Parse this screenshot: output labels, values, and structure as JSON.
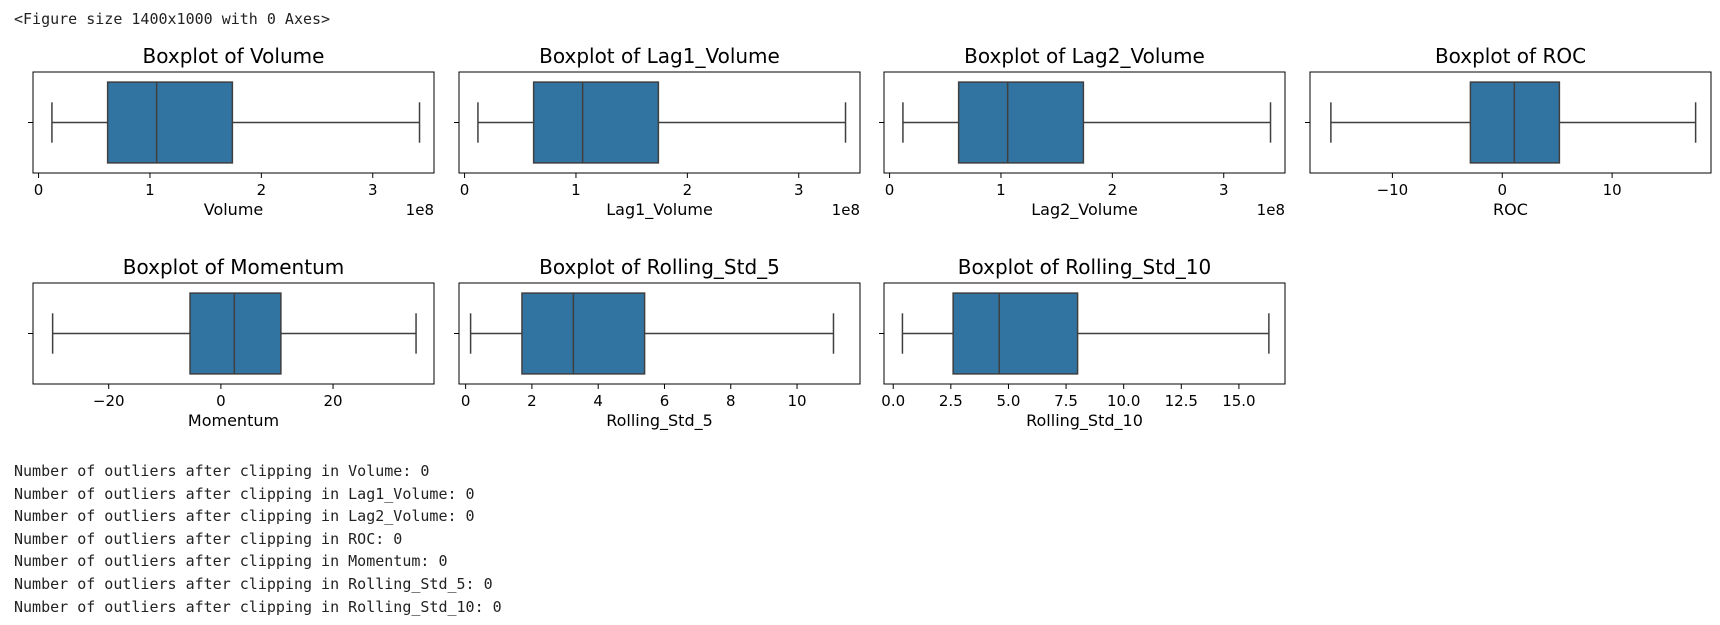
{
  "header_text": "<Figure size 1400x1000 with 0 Axes>",
  "output_lines": [
    "Number of outliers after clipping in Volume: 0",
    "Number of outliers after clipping in Lag1_Volume: 0",
    "Number of outliers after clipping in Lag2_Volume: 0",
    "Number of outliers after clipping in ROC: 0",
    "Number of outliers after clipping in Momentum: 0",
    "Number of outliers after clipping in Rolling_Std_5: 0",
    "Number of outliers after clipping in Rolling_Std_10: 0"
  ],
  "colors": {
    "box_fill": "#3274a1",
    "line": "#3f3f3f",
    "frame": "#000000"
  },
  "chart_data": [
    {
      "type": "boxplot",
      "title": "Boxplot of Volume",
      "xlabel": "Volume",
      "offset_label": "1e8",
      "xlim": [
        -0.05,
        3.55
      ],
      "ticks": [
        0,
        1,
        2,
        3
      ],
      "tick_labels": [
        "0",
        "1",
        "2",
        "3"
      ],
      "stats": {
        "whisker_low": 0.12,
        "q1": 0.62,
        "median": 1.06,
        "q3": 1.74,
        "whisker_high": 3.42
      }
    },
    {
      "type": "boxplot",
      "title": "Boxplot of Lag1_Volume",
      "xlabel": "Lag1_Volume",
      "offset_label": "1e8",
      "xlim": [
        -0.05,
        3.55
      ],
      "ticks": [
        0,
        1,
        2,
        3
      ],
      "tick_labels": [
        "0",
        "1",
        "2",
        "3"
      ],
      "stats": {
        "whisker_low": 0.12,
        "q1": 0.62,
        "median": 1.06,
        "q3": 1.74,
        "whisker_high": 3.42
      }
    },
    {
      "type": "boxplot",
      "title": "Boxplot of Lag2_Volume",
      "xlabel": "Lag2_Volume",
      "offset_label": "1e8",
      "xlim": [
        -0.05,
        3.55
      ],
      "ticks": [
        0,
        1,
        2,
        3
      ],
      "tick_labels": [
        "0",
        "1",
        "2",
        "3"
      ],
      "stats": {
        "whisker_low": 0.12,
        "q1": 0.62,
        "median": 1.06,
        "q3": 1.74,
        "whisker_high": 3.42
      }
    },
    {
      "type": "boxplot",
      "title": "Boxplot of ROC",
      "xlabel": "ROC",
      "offset_label": "",
      "xlim": [
        -17.5,
        19.0
      ],
      "ticks": [
        -10,
        0,
        10
      ],
      "tick_labels": [
        "−10",
        "0",
        "10"
      ],
      "stats": {
        "whisker_low": -15.6,
        "q1": -2.9,
        "median": 1.1,
        "q3": 5.2,
        "whisker_high": 17.6
      }
    },
    {
      "type": "boxplot",
      "title": "Boxplot of Momentum",
      "xlabel": "Momentum",
      "offset_label": "",
      "xlim": [
        -33.5,
        38.0
      ],
      "ticks": [
        -20,
        0,
        20
      ],
      "tick_labels": [
        "−20",
        "0",
        "20"
      ],
      "stats": {
        "whisker_low": -30.0,
        "q1": -5.5,
        "median": 2.4,
        "q3": 10.7,
        "whisker_high": 34.8
      }
    },
    {
      "type": "boxplot",
      "title": "Boxplot of Rolling_Std_5",
      "xlabel": "Rolling_Std_5",
      "offset_label": "",
      "xlim": [
        -0.2,
        11.9
      ],
      "ticks": [
        0,
        2,
        4,
        6,
        8,
        10
      ],
      "tick_labels": [
        "0",
        "2",
        "4",
        "6",
        "8",
        "10"
      ],
      "stats": {
        "whisker_low": 0.15,
        "q1": 1.7,
        "median": 3.25,
        "q3": 5.4,
        "whisker_high": 11.1
      }
    },
    {
      "type": "boxplot",
      "title": "Boxplot of Rolling_Std_10",
      "xlabel": "Rolling_Std_10",
      "offset_label": "",
      "xlim": [
        -0.4,
        17.0
      ],
      "ticks": [
        0,
        2.5,
        5,
        7.5,
        10,
        12.5,
        15
      ],
      "tick_labels": [
        "0.0",
        "2.5",
        "5.0",
        "7.5",
        "10.0",
        "12.5",
        "15.0"
      ],
      "stats": {
        "whisker_low": 0.4,
        "q1": 2.6,
        "median": 4.6,
        "q3": 8.0,
        "whisker_high": 16.3
      }
    }
  ]
}
